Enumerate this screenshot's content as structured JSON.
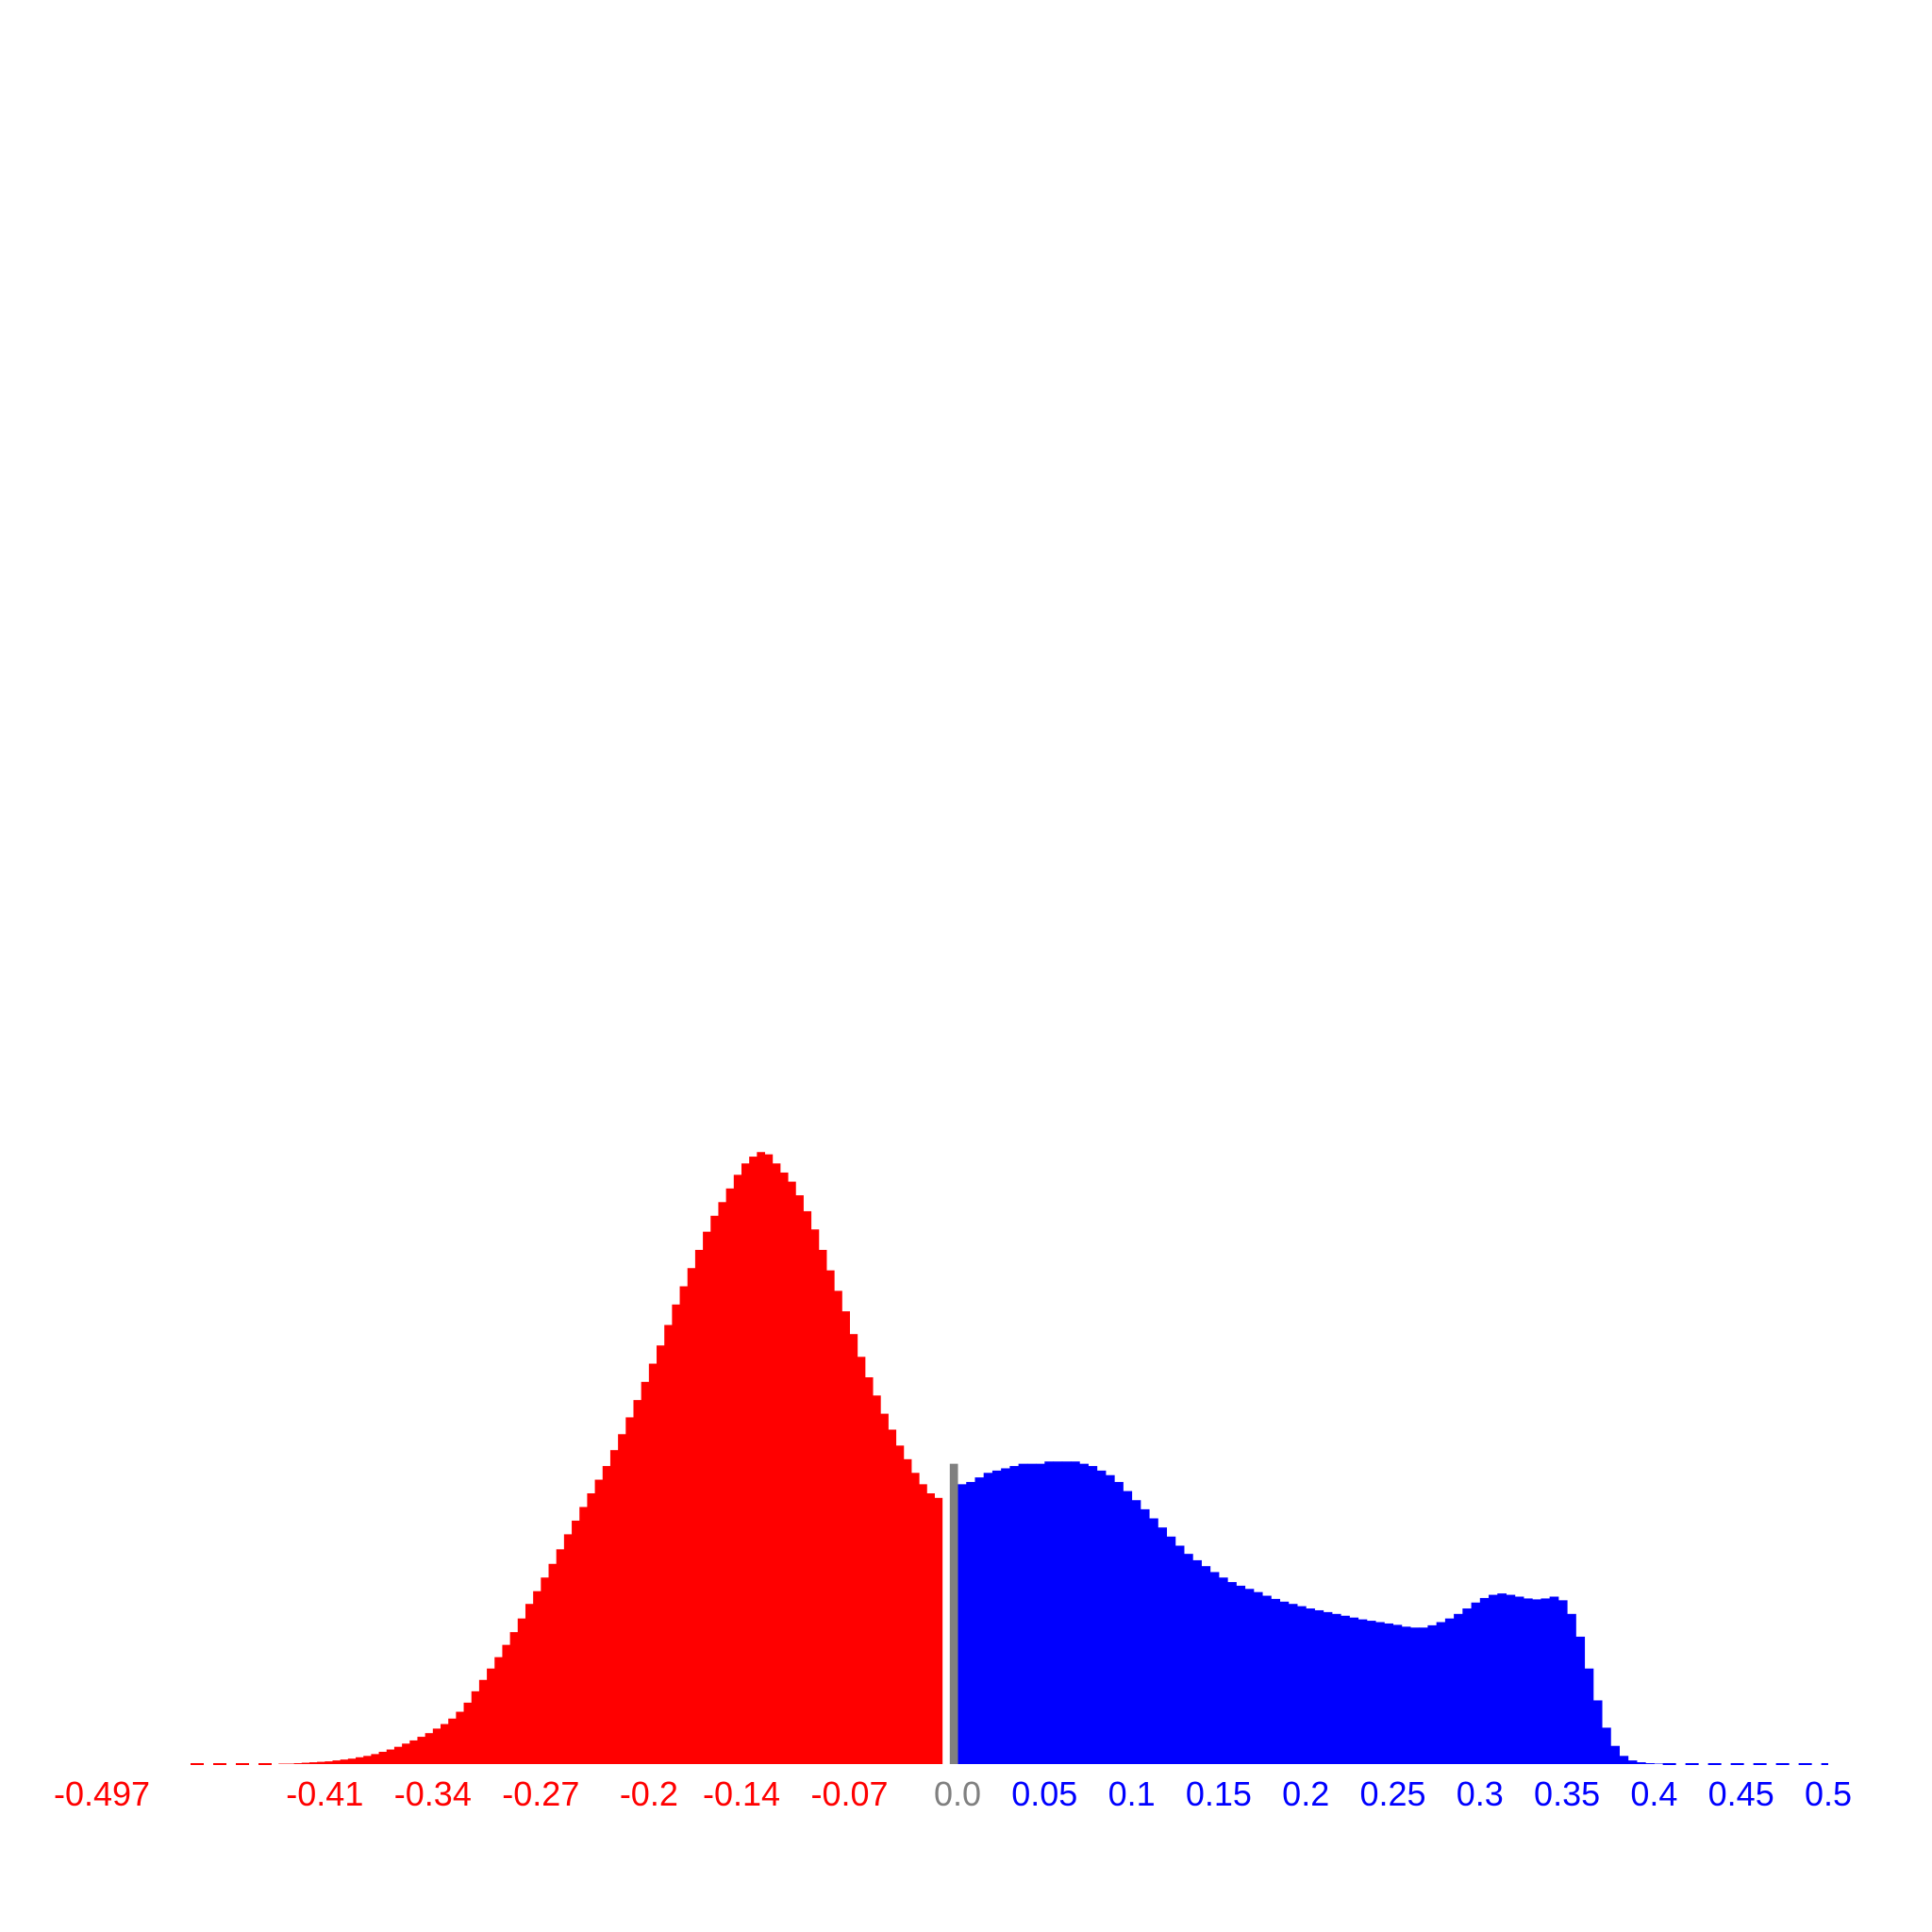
{
  "colors": {
    "negative": "#ff0000",
    "positive": "#0000ff",
    "zero": "#808080",
    "background": "#ffffff"
  },
  "chart_data": {
    "type": "bar",
    "title": "",
    "xlabel": "",
    "ylabel": "",
    "grid": false,
    "legend": "none",
    "xlim": [
      -0.497,
      0.5
    ],
    "ylim": [
      0,
      1700
    ],
    "bin_width": 0.005,
    "x_tick_labels": [
      {
        "value": -0.497,
        "label": "-0.497",
        "side": "negative"
      },
      {
        "value": -0.41,
        "label": "-0.41",
        "side": "negative"
      },
      {
        "value": -0.34,
        "label": "-0.34",
        "side": "negative"
      },
      {
        "value": -0.27,
        "label": "-0.27",
        "side": "negative"
      },
      {
        "value": -0.2,
        "label": "-0.2",
        "side": "negative"
      },
      {
        "value": -0.14,
        "label": "-0.14",
        "side": "negative"
      },
      {
        "value": -0.07,
        "label": "-0.07",
        "side": "negative"
      },
      {
        "value": 0.0,
        "label": "0.0",
        "side": "zero"
      },
      {
        "value": 0.05,
        "label": "0.05",
        "side": "positive"
      },
      {
        "value": 0.1,
        "label": "0.1",
        "side": "positive"
      },
      {
        "value": 0.15,
        "label": "0.15",
        "side": "positive"
      },
      {
        "value": 0.2,
        "label": "0.2",
        "side": "positive"
      },
      {
        "value": 0.25,
        "label": "0.25",
        "side": "positive"
      },
      {
        "value": 0.3,
        "label": "0.3",
        "side": "positive"
      },
      {
        "value": 0.35,
        "label": "0.35",
        "side": "positive"
      },
      {
        "value": 0.4,
        "label": "0.4",
        "side": "positive"
      },
      {
        "value": 0.45,
        "label": "0.45",
        "side": "positive"
      },
      {
        "value": 0.5,
        "label": "0.5",
        "side": "positive"
      }
    ],
    "series": [
      {
        "bin_start": -0.44,
        "color_key": "negative",
        "values": [
          1,
          1,
          2,
          3,
          4,
          5,
          6,
          8,
          10,
          12,
          15,
          18,
          22,
          27,
          32,
          38,
          45,
          52,
          60,
          68,
          78,
          88,
          100,
          115,
          135,
          160,
          185,
          210,
          235,
          262,
          290,
          320,
          352,
          380,
          410,
          440,
          472,
          505,
          535,
          565,
          595,
          625,
          655,
          690,
          725,
          762,
          800,
          840,
          880,
          920,
          965,
          1010,
          1050,
          1090,
          1130,
          1170,
          1205,
          1235,
          1265,
          1295,
          1320,
          1335,
          1345,
          1340,
          1320,
          1300,
          1280,
          1250,
          1215,
          1175,
          1130,
          1085,
          1040,
          995,
          945,
          895,
          850,
          810,
          770,
          735,
          700,
          670,
          640,
          615,
          595,
          585
        ]
      },
      {
        "bin_start": 0.0,
        "color_key": "positive",
        "values": [
          615,
          620,
          630,
          640,
          645,
          650,
          655,
          660,
          660,
          660,
          665,
          665,
          665,
          665,
          660,
          655,
          645,
          635,
          620,
          600,
          580,
          560,
          540,
          520,
          500,
          480,
          462,
          448,
          435,
          422,
          410,
          400,
          392,
          385,
          378,
          370,
          363,
          357,
          352,
          347,
          342,
          338,
          334,
          330,
          326,
          322,
          318,
          315,
          312,
          309,
          306,
          302,
          300,
          300,
          305,
          312,
          320,
          330,
          342,
          355,
          365,
          372,
          375,
          372,
          368,
          364,
          362,
          364,
          368,
          360,
          330,
          280,
          210,
          140,
          80,
          40,
          18,
          8,
          4,
          2,
          1
        ]
      },
      {
        "bin_start": -0.005,
        "color_key": "zero",
        "values": [
          660
        ]
      }
    ]
  }
}
